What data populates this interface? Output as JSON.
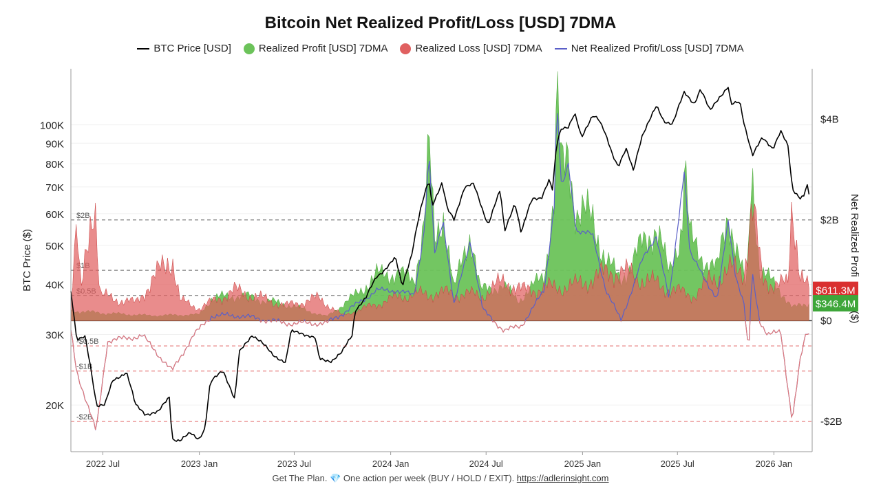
{
  "chart_data": {
    "type": "line",
    "title": "Bitcoin Net Realized Profit/Loss [USD] 7DMA",
    "legend_placement": "top",
    "legend": [
      {
        "label": "BTC Price [USD]",
        "kind": "line",
        "color": "#000000"
      },
      {
        "label": "Realized Profit [USD] 7DMA",
        "kind": "dot",
        "color": "#6cc35a"
      },
      {
        "label": "Realized Loss [USD] 7DMA",
        "kind": "dot",
        "color": "#e06060"
      },
      {
        "label": "Net Realized Profit/Loss [USD] 7DMA",
        "kind": "line",
        "color": "#5a5fc8"
      }
    ],
    "x_axis": {
      "range": [
        "2022-05-01",
        "2026-03-15"
      ],
      "ticks": [
        {
          "date": "2022-07-01",
          "label": "2022 Jul"
        },
        {
          "date": "2023-01-01",
          "label": "2023 Jan"
        },
        {
          "date": "2023-07-01",
          "label": "2023 Jul"
        },
        {
          "date": "2024-01-01",
          "label": "2024 Jan"
        },
        {
          "date": "2024-07-01",
          "label": "2024 Jul"
        },
        {
          "date": "2025-01-01",
          "label": "2025 Jan"
        },
        {
          "date": "2025-07-01",
          "label": "2025 Jul"
        },
        {
          "date": "2026-01-01",
          "label": "2026 Jan"
        }
      ]
    },
    "y_left": {
      "label": "BTC Price ($)",
      "scale": "log",
      "range": [
        15300,
        138000
      ],
      "ticks": [
        {
          "value": 20000,
          "label": "20K"
        },
        {
          "value": 30000,
          "label": "30K"
        },
        {
          "value": 40000,
          "label": "40K"
        },
        {
          "value": 50000,
          "label": "50K"
        },
        {
          "value": 60000,
          "label": "60K"
        },
        {
          "value": 70000,
          "label": "70K"
        },
        {
          "value": 80000,
          "label": "80K"
        },
        {
          "value": 90000,
          "label": "90K"
        },
        {
          "value": 100000,
          "label": "100K"
        }
      ]
    },
    "y_right": {
      "label": "Net Realized Profi",
      "unit_label": "($)",
      "scale": "linear",
      "range": [
        -2.6,
        5.0
      ],
      "ticks": [
        {
          "value": 4,
          "label": "$4B"
        },
        {
          "value": 2,
          "label": "$2B"
        },
        {
          "value": 0,
          "label": "$0"
        },
        {
          "value": -2,
          "label": "-$2B"
        }
      ],
      "ref_lines": [
        {
          "value": 2,
          "label": "$2B",
          "style": "dashed",
          "color": "#666666"
        },
        {
          "value": 1,
          "label": "$1B",
          "style": "dashed",
          "color": "#666666"
        },
        {
          "value": 0.5,
          "label": "$0.5B",
          "style": "dashed",
          "color": "#666666"
        },
        {
          "value": 0,
          "label": "",
          "style": "solid",
          "color": "#333333"
        },
        {
          "value": -0.5,
          "label": "-$0.5B",
          "style": "dashed",
          "color": "#e06060"
        },
        {
          "value": -1,
          "label": "-$1B",
          "style": "dashed",
          "color": "#e06060"
        },
        {
          "value": -2,
          "label": "-$2B",
          "style": "dashed",
          "color": "#e06060"
        }
      ]
    },
    "current_values": [
      {
        "label": "$611.3M",
        "value": 0.6113,
        "color": "#d93030"
      },
      {
        "label": "$346.4M",
        "value": 0.3464,
        "color": "#3ea63a"
      }
    ],
    "series": [
      {
        "name": "BTC Price [USD]",
        "axis": "left",
        "color": "#000000",
        "points": [
          [
            "2022-05-01",
            38500
          ],
          [
            "2022-05-12",
            29000
          ],
          [
            "2022-05-28",
            29500
          ],
          [
            "2022-06-13",
            22500
          ],
          [
            "2022-06-19",
            20000
          ],
          [
            "2022-07-05",
            20000
          ],
          [
            "2022-07-20",
            23000
          ],
          [
            "2022-08-15",
            24200
          ],
          [
            "2022-09-01",
            20000
          ],
          [
            "2022-09-20",
            19000
          ],
          [
            "2022-10-15",
            19200
          ],
          [
            "2022-11-05",
            21000
          ],
          [
            "2022-11-10",
            16500
          ],
          [
            "2022-11-25",
            16300
          ],
          [
            "2022-12-15",
            17000
          ],
          [
            "2022-12-31",
            16500
          ],
          [
            "2023-01-12",
            17500
          ],
          [
            "2023-01-22",
            22700
          ],
          [
            "2023-02-15",
            24500
          ],
          [
            "2023-03-10",
            20500
          ],
          [
            "2023-03-18",
            27000
          ],
          [
            "2023-04-12",
            30000
          ],
          [
            "2023-05-01",
            28500
          ],
          [
            "2023-05-20",
            26800
          ],
          [
            "2023-06-15",
            25500
          ],
          [
            "2023-06-25",
            30500
          ],
          [
            "2023-07-15",
            30300
          ],
          [
            "2023-08-10",
            29300
          ],
          [
            "2023-08-18",
            26000
          ],
          [
            "2023-09-10",
            25800
          ],
          [
            "2023-09-30",
            27000
          ],
          [
            "2023-10-20",
            30000
          ],
          [
            "2023-10-25",
            34500
          ],
          [
            "2023-11-15",
            37000
          ],
          [
            "2023-12-05",
            41800
          ],
          [
            "2023-12-20",
            43500
          ],
          [
            "2024-01-10",
            46500
          ],
          [
            "2024-01-23",
            39500
          ],
          [
            "2024-02-10",
            47500
          ],
          [
            "2024-02-28",
            62000
          ],
          [
            "2024-03-14",
            73000
          ],
          [
            "2024-03-20",
            63000
          ],
          [
            "2024-04-08",
            71500
          ],
          [
            "2024-04-18",
            61500
          ],
          [
            "2024-05-01",
            58000
          ],
          [
            "2024-05-21",
            70000
          ],
          [
            "2024-06-07",
            71000
          ],
          [
            "2024-06-25",
            61000
          ],
          [
            "2024-07-05",
            56500
          ],
          [
            "2024-07-28",
            68500
          ],
          [
            "2024-08-05",
            54000
          ],
          [
            "2024-08-25",
            64000
          ],
          [
            "2024-09-06",
            53500
          ],
          [
            "2024-09-27",
            65500
          ],
          [
            "2024-10-15",
            66000
          ],
          [
            "2024-10-29",
            72500
          ],
          [
            "2024-11-05",
            68500
          ],
          [
            "2024-11-13",
            90000
          ],
          [
            "2024-11-22",
            98500
          ],
          [
            "2024-12-05",
            99000
          ],
          [
            "2024-12-17",
            106500
          ],
          [
            "2024-12-30",
            92500
          ],
          [
            "2025-01-20",
            106000
          ],
          [
            "2025-01-30",
            104000
          ],
          [
            "2025-02-10",
            97000
          ],
          [
            "2025-02-27",
            84500
          ],
          [
            "2025-03-10",
            79000
          ],
          [
            "2025-03-25",
            87000
          ],
          [
            "2025-04-08",
            76500
          ],
          [
            "2025-04-25",
            94500
          ],
          [
            "2025-05-22",
            111000
          ],
          [
            "2025-06-05",
            102000
          ],
          [
            "2025-06-22",
            101000
          ],
          [
            "2025-07-14",
            120000
          ],
          [
            "2025-08-02",
            113000
          ],
          [
            "2025-08-14",
            123000
          ],
          [
            "2025-09-01",
            108000
          ],
          [
            "2025-09-18",
            117000
          ],
          [
            "2025-10-06",
            124500
          ],
          [
            "2025-10-11",
            112000
          ],
          [
            "2025-10-28",
            114000
          ],
          [
            "2025-11-05",
            101000
          ],
          [
            "2025-11-21",
            84000
          ],
          [
            "2025-12-10",
            92500
          ],
          [
            "2025-12-30",
            87500
          ],
          [
            "2026-01-14",
            96500
          ],
          [
            "2026-01-28",
            88000
          ],
          [
            "2026-02-05",
            69000
          ],
          [
            "2026-02-20",
            66000
          ],
          [
            "2026-03-01",
            67000
          ],
          [
            "2026-03-04",
            72000
          ],
          [
            "2026-03-09",
            67000
          ]
        ]
      },
      {
        "name": "Realized Profit [USD] 7DMA",
        "axis": "right",
        "color": "#6cc35a",
        "points": [
          [
            "2022-05-01",
            0.2
          ],
          [
            "2022-07-01",
            0.15
          ],
          [
            "2022-10-01",
            0.1
          ],
          [
            "2023-01-01",
            0.12
          ],
          [
            "2023-01-25",
            0.45
          ],
          [
            "2023-03-20",
            0.5
          ],
          [
            "2023-04-14",
            0.45
          ],
          [
            "2023-06-25",
            0.3
          ],
          [
            "2023-09-01",
            0.08
          ],
          [
            "2023-10-25",
            0.5
          ],
          [
            "2023-12-05",
            0.9
          ],
          [
            "2024-01-11",
            0.95
          ],
          [
            "2024-02-15",
            0.8
          ],
          [
            "2024-03-05",
            2.0
          ],
          [
            "2024-03-14",
            3.4
          ],
          [
            "2024-03-25",
            1.5
          ],
          [
            "2024-04-10",
            2.2
          ],
          [
            "2024-05-01",
            0.6
          ],
          [
            "2024-06-01",
            1.8
          ],
          [
            "2024-06-20",
            0.6
          ],
          [
            "2024-08-01",
            0.7
          ],
          [
            "2024-09-01",
            0.4
          ],
          [
            "2024-10-20",
            0.9
          ],
          [
            "2024-11-08",
            2.5
          ],
          [
            "2024-11-13",
            4.5
          ],
          [
            "2024-11-22",
            2.8
          ],
          [
            "2024-12-05",
            3.3
          ],
          [
            "2024-12-20",
            2.2
          ],
          [
            "2025-01-20",
            2.0
          ],
          [
            "2025-02-15",
            1.2
          ],
          [
            "2025-03-15",
            0.8
          ],
          [
            "2025-04-25",
            1.5
          ],
          [
            "2025-05-22",
            1.9
          ],
          [
            "2025-06-15",
            0.9
          ],
          [
            "2025-07-10",
            1.9
          ],
          [
            "2025-07-14",
            3.2
          ],
          [
            "2025-07-25",
            1.6
          ],
          [
            "2025-08-14",
            1.3
          ],
          [
            "2025-09-15",
            1.0
          ],
          [
            "2025-10-06",
            2.2
          ],
          [
            "2025-10-20",
            1.5
          ],
          [
            "2025-11-10",
            0.6
          ],
          [
            "2025-11-20",
            3.1
          ],
          [
            "2025-12-05",
            1.0
          ],
          [
            "2026-01-14",
            0.6
          ],
          [
            "2026-02-05",
            0.25
          ],
          [
            "2026-03-09",
            0.35
          ]
        ]
      },
      {
        "name": "Realized Loss [USD] 7DMA",
        "axis": "right",
        "color": "#e06060",
        "points": [
          [
            "2022-05-01",
            0.4
          ],
          [
            "2022-05-12",
            1.8
          ],
          [
            "2022-05-20",
            0.5
          ],
          [
            "2022-06-15",
            2.7
          ],
          [
            "2022-06-25",
            0.5
          ],
          [
            "2022-09-01",
            0.35
          ],
          [
            "2022-11-10",
            1.3
          ],
          [
            "2022-11-25",
            0.4
          ],
          [
            "2023-01-01",
            0.25
          ],
          [
            "2023-03-10",
            0.6
          ],
          [
            "2023-06-15",
            0.3
          ],
          [
            "2023-08-18",
            0.45
          ],
          [
            "2023-10-01",
            0.1
          ],
          [
            "2024-01-23",
            0.5
          ],
          [
            "2024-04-18",
            0.55
          ],
          [
            "2024-06-25",
            0.5
          ],
          [
            "2024-08-05",
            0.8
          ],
          [
            "2024-09-06",
            0.6
          ],
          [
            "2024-12-20",
            0.7
          ],
          [
            "2025-02-27",
            1.0
          ],
          [
            "2025-04-08",
            0.9
          ],
          [
            "2025-06-22",
            0.6
          ],
          [
            "2025-08-02",
            0.5
          ],
          [
            "2025-09-01",
            0.8
          ],
          [
            "2025-10-11",
            1.0
          ],
          [
            "2025-11-05",
            1.0
          ],
          [
            "2025-11-21",
            2.3
          ],
          [
            "2025-12-10",
            0.8
          ],
          [
            "2026-01-28",
            0.7
          ],
          [
            "2026-02-05",
            2.4
          ],
          [
            "2026-02-20",
            1.0
          ],
          [
            "2026-03-09",
            0.61
          ]
        ]
      },
      {
        "name": "Net Realized Profit/Loss [USD] 7DMA",
        "axis": "right",
        "color": "#5a5fc8",
        "points": [
          [
            "2022-05-01",
            -0.2
          ],
          [
            "2022-05-12",
            -1.0
          ],
          [
            "2022-06-18",
            -2.2
          ],
          [
            "2022-07-10",
            -0.4
          ],
          [
            "2022-09-15",
            -0.3
          ],
          [
            "2022-11-10",
            -1.0
          ],
          [
            "2022-12-20",
            -0.3
          ],
          [
            "2023-01-25",
            0.1
          ],
          [
            "2023-03-20",
            0.1
          ],
          [
            "2023-06-15",
            -0.05
          ],
          [
            "2023-09-01",
            -0.05
          ],
          [
            "2023-10-25",
            0.3
          ],
          [
            "2023-12-05",
            0.6
          ],
          [
            "2024-01-11",
            0.6
          ],
          [
            "2024-02-15",
            0.5
          ],
          [
            "2024-03-05",
            1.8
          ],
          [
            "2024-03-14",
            3.3
          ],
          [
            "2024-03-25",
            1.3
          ],
          [
            "2024-04-10",
            2.0
          ],
          [
            "2024-05-01",
            0.3
          ],
          [
            "2024-06-01",
            1.6
          ],
          [
            "2024-06-25",
            0.2
          ],
          [
            "2024-08-05",
            -0.2
          ],
          [
            "2024-09-06",
            -0.1
          ],
          [
            "2024-10-20",
            0.6
          ],
          [
            "2024-11-08",
            2.3
          ],
          [
            "2024-11-13",
            4.4
          ],
          [
            "2024-11-22",
            2.6
          ],
          [
            "2024-12-05",
            3.1
          ],
          [
            "2024-12-20",
            1.8
          ],
          [
            "2025-01-20",
            1.7
          ],
          [
            "2025-02-15",
            0.6
          ],
          [
            "2025-03-15",
            0.0
          ],
          [
            "2025-04-25",
            1.2
          ],
          [
            "2025-05-22",
            1.7
          ],
          [
            "2025-06-15",
            0.4
          ],
          [
            "2025-07-14",
            3.0
          ],
          [
            "2025-07-25",
            1.3
          ],
          [
            "2025-08-14",
            1.0
          ],
          [
            "2025-09-15",
            0.4
          ],
          [
            "2025-10-06",
            2.0
          ],
          [
            "2025-10-20",
            0.9
          ],
          [
            "2025-11-05",
            0.3
          ],
          [
            "2025-11-14",
            -0.7
          ],
          [
            "2025-11-20",
            1.0
          ],
          [
            "2025-12-05",
            0.0
          ],
          [
            "2025-12-20",
            -0.3
          ],
          [
            "2026-01-14",
            -0.2
          ],
          [
            "2026-02-05",
            -2.0
          ],
          [
            "2026-02-20",
            -0.8
          ],
          [
            "2026-03-04",
            -0.2
          ],
          [
            "2026-03-09",
            -0.25
          ]
        ]
      }
    ],
    "footer": {
      "text": "Get The Plan. 💎 One action per week (BUY / HOLD / EXIT). ",
      "link": "https://adlerinsight.com"
    }
  }
}
